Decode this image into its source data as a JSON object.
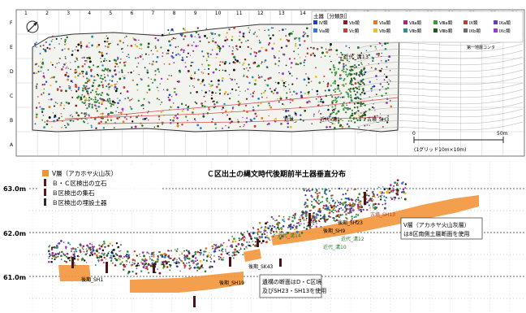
{
  "grid": {
    "columns": [
      "1",
      "2",
      "3",
      "4",
      "5",
      "6",
      "7",
      "8",
      "9",
      "10",
      "11",
      "12",
      "13",
      "14",
      "15",
      "16",
      "17",
      "18",
      "19",
      "20",
      "21",
      "22",
      "23",
      "24"
    ],
    "rows": [
      "F",
      "E",
      "D",
      "C",
      "B",
      "A"
    ]
  },
  "legend_top": {
    "title": "土器［分類別］",
    "items": [
      {
        "label": "Ⅳ類",
        "color": "#1f3fbf"
      },
      {
        "label": "Ⅴb類",
        "color": "#8c1c1c"
      },
      {
        "label": "Ⅵa類",
        "color": "#e07a1a"
      },
      {
        "label": "Ⅶa類",
        "color": "#b01e8c"
      },
      {
        "label": "Ⅷa類",
        "color": "#3a9a3a"
      },
      {
        "label": "Ⅸ類",
        "color": "#c23a3a"
      },
      {
        "label": "Ⅸa類",
        "color": "#6b3db5"
      },
      {
        "label": "Ⅴa類",
        "color": "#2a7bd1"
      },
      {
        "label": "Ⅴc類",
        "color": "#d63a2e"
      },
      {
        "label": "Ⅵb類",
        "color": "#e8c21a"
      },
      {
        "label": "Ⅶb類",
        "color": "#2c8f8f"
      },
      {
        "label": "Ⅷb類",
        "color": "#1a5a1a"
      },
      {
        "label": "Ⅸb類",
        "color": "#6a6a6a"
      },
      {
        "label": "Ⅸc類",
        "color": "#9a3ad1"
      }
    ]
  },
  "plan_labels": {
    "scale_zero": "0",
    "scale_end": "50m",
    "scale_caption": "(1グリッド10m×10m)",
    "site_note": "第一地層コンタ",
    "kinsei_13": "近代_溝13",
    "kinsei_ko": "近代_溝1",
    "kinsei_ko2": "近代_溝1",
    "kodai_sh3": "古墳_SH3",
    "kinsei_b": "近世_"
  },
  "section": {
    "title": "Ｃ区出土の縄文時代後期前半土器垂直分布",
    "legend": [
      {
        "symbol": "square",
        "color": "#f2953a",
        "label": "Ⅴ層（アカホヤ火山灰）"
      },
      {
        "symbol": "bar",
        "color": "#5a1a1a",
        "label": "Ｂ・Ｃ区検出の立石"
      },
      {
        "symbol": "bar",
        "color": "#5a1a1a",
        "label": "Ｂ区検出の集石"
      },
      {
        "symbol": "bar",
        "color": "#2a2a2a",
        "label": "Ｂ区検出の埋設土器"
      }
    ],
    "y_ticks": [
      "63.0m",
      "62.0m",
      "61.0m"
    ],
    "labels": {
      "sh1": "後期_SH1",
      "sh19": "後期_SH19",
      "sk43": "後期_SK43",
      "sh23": "後期_SH23",
      "sh13": "古墳_SH13",
      "kinsei14": "近代_溝14",
      "sh9": "後期_SH9",
      "kinsei12": "近代_溝12",
      "kinsei10": "近代_溝10",
      "note1": "遺構の断面はD・C区境",
      "note2": "及びSH23・SH13を使用",
      "box1": "Ⅴ層（アカホヤ火山灰層）",
      "box2": "は8区南側土層断面を使用"
    }
  }
}
